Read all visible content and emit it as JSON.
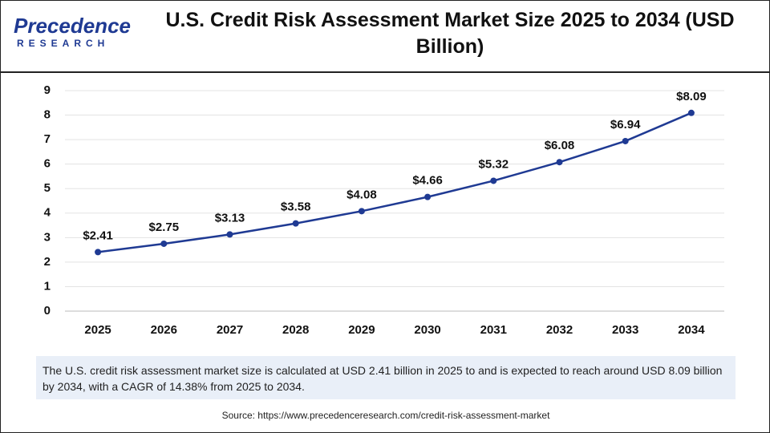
{
  "logo": {
    "name": "Precedence",
    "tagline": "RESEARCH"
  },
  "chart_data": {
    "type": "line",
    "title": "U.S. Credit Risk Assessment Market Size 2025 to 2034 (USD Billion)",
    "categories": [
      "2025",
      "2026",
      "2027",
      "2028",
      "2029",
      "2030",
      "2031",
      "2032",
      "2033",
      "2034"
    ],
    "series": [
      {
        "name": "U.S. Credit Risk Assessment Market Size",
        "color": "#1f3a93",
        "values": [
          2.41,
          2.75,
          3.13,
          3.58,
          4.08,
          4.66,
          5.32,
          6.08,
          6.94,
          8.09
        ],
        "value_labels": [
          "$2.41",
          "$2.75",
          "$3.13",
          "$3.58",
          "$4.08",
          "$4.66",
          "$5.32",
          "$6.08",
          "$6.94",
          "$8.09"
        ]
      }
    ],
    "ylim": [
      0,
      9
    ],
    "yticks": [
      0,
      1,
      2,
      3,
      4,
      5,
      6,
      7,
      8,
      9
    ],
    "grid": true
  },
  "note": "The U.S. credit risk assessment market size is calculated at USD 2.41 billion in 2025 to and is expected to reach around USD 8.09 billion by 2034, with a CAGR of 14.38% from 2025 to 2034.",
  "source": "Source: https://www.precedenceresearch.com/credit-risk-assessment-market"
}
